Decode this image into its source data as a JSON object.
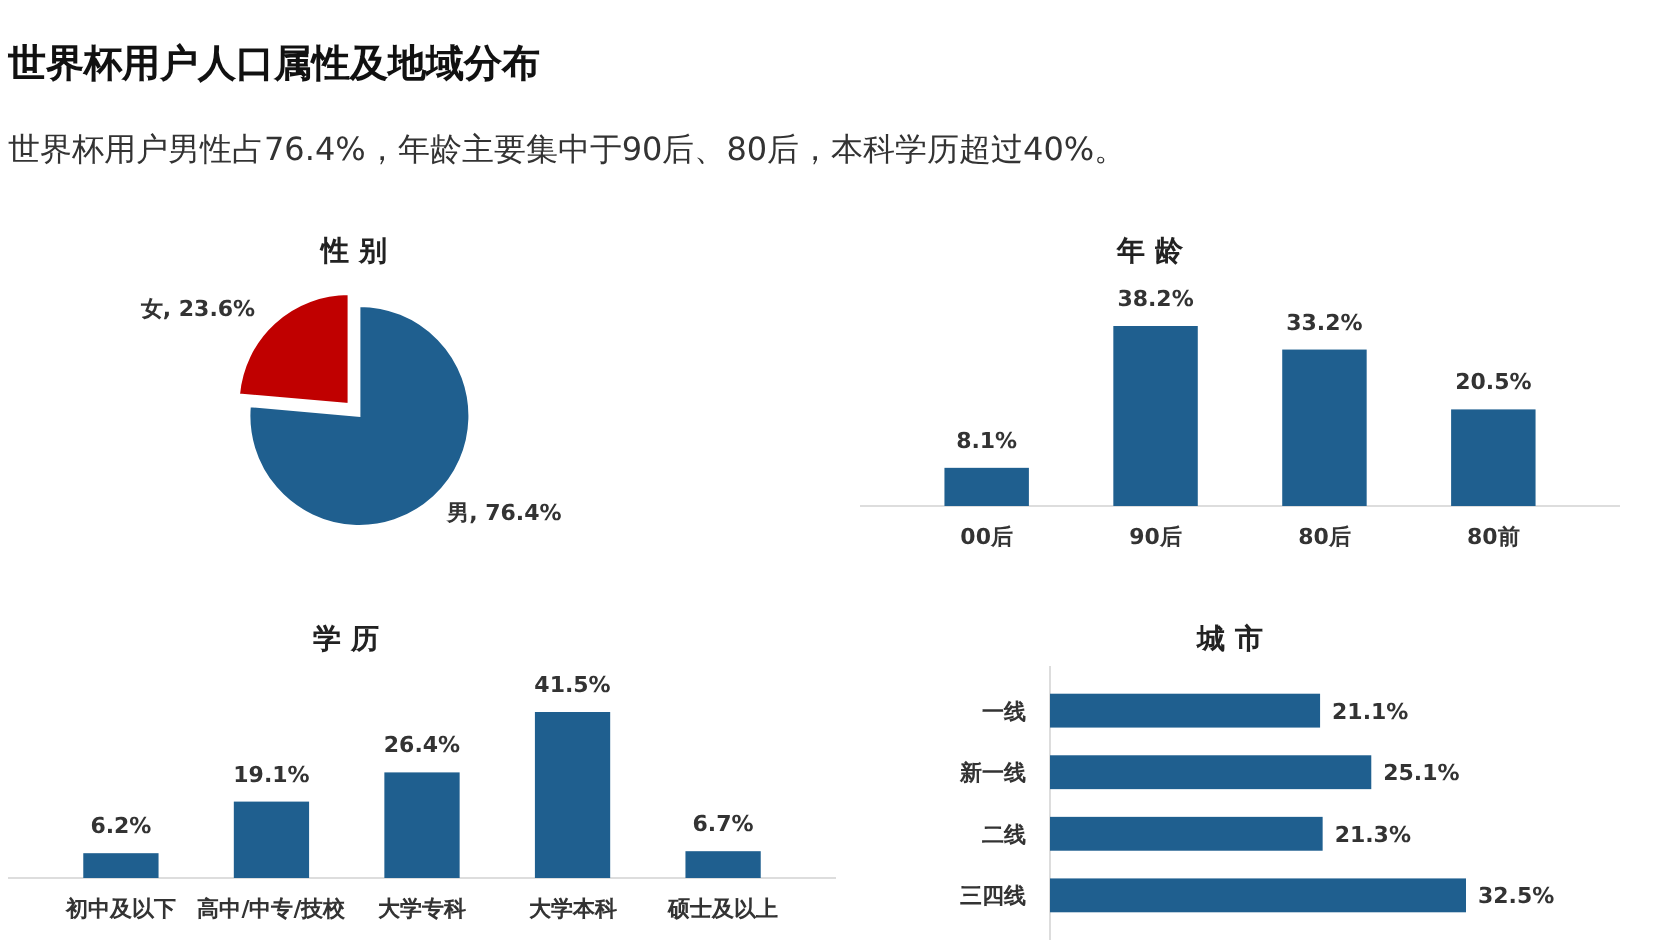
{
  "chart_data": [
    {
      "type": "other",
      "title": "世界杯用户人口属性及地域分布",
      "subtitle": "世界杯用户男性占76.4%，年龄主要集中于90后、80后，本科学历超过40%。"
    },
    {
      "type": "pie",
      "title": "性 别",
      "categories": [
        "女",
        "男"
      ],
      "values": [
        23.6,
        76.4
      ],
      "colors": [
        "#c00000",
        "#1f5f8f"
      ],
      "value_labels": [
        ", 23.6%",
        ", 76.4%"
      ]
    },
    {
      "type": "bar",
      "title": "年 龄",
      "categories": [
        "00后",
        "90后",
        "80后",
        "80前"
      ],
      "values": [
        8.1,
        38.2,
        33.2,
        20.5
      ],
      "color": "#1f5f8f",
      "value_labels": [
        "8.1%",
        "38.2%",
        "33.2%",
        "20.5%"
      ]
    },
    {
      "type": "bar",
      "title": "学 历",
      "categories": [
        "初中及以下",
        "高中/中专/技校",
        "大学专科",
        "大学本科",
        "硕士及以上"
      ],
      "values": [
        6.2,
        19.1,
        26.4,
        41.5,
        6.7
      ],
      "color": "#1f5f8f",
      "value_labels": [
        "6.2%",
        "19.1%",
        "26.4%",
        "41.5%",
        "6.7%"
      ]
    },
    {
      "type": "bar",
      "title": "城 市",
      "orientation": "horizontal",
      "categories": [
        "一线",
        "新一线",
        "二线",
        "三四线"
      ],
      "values": [
        21.1,
        25.1,
        21.3,
        32.5
      ],
      "color": "#1f5f8f",
      "value_labels": [
        "21.1%",
        "25.1%",
        "21.3%",
        "32.5%"
      ]
    }
  ]
}
